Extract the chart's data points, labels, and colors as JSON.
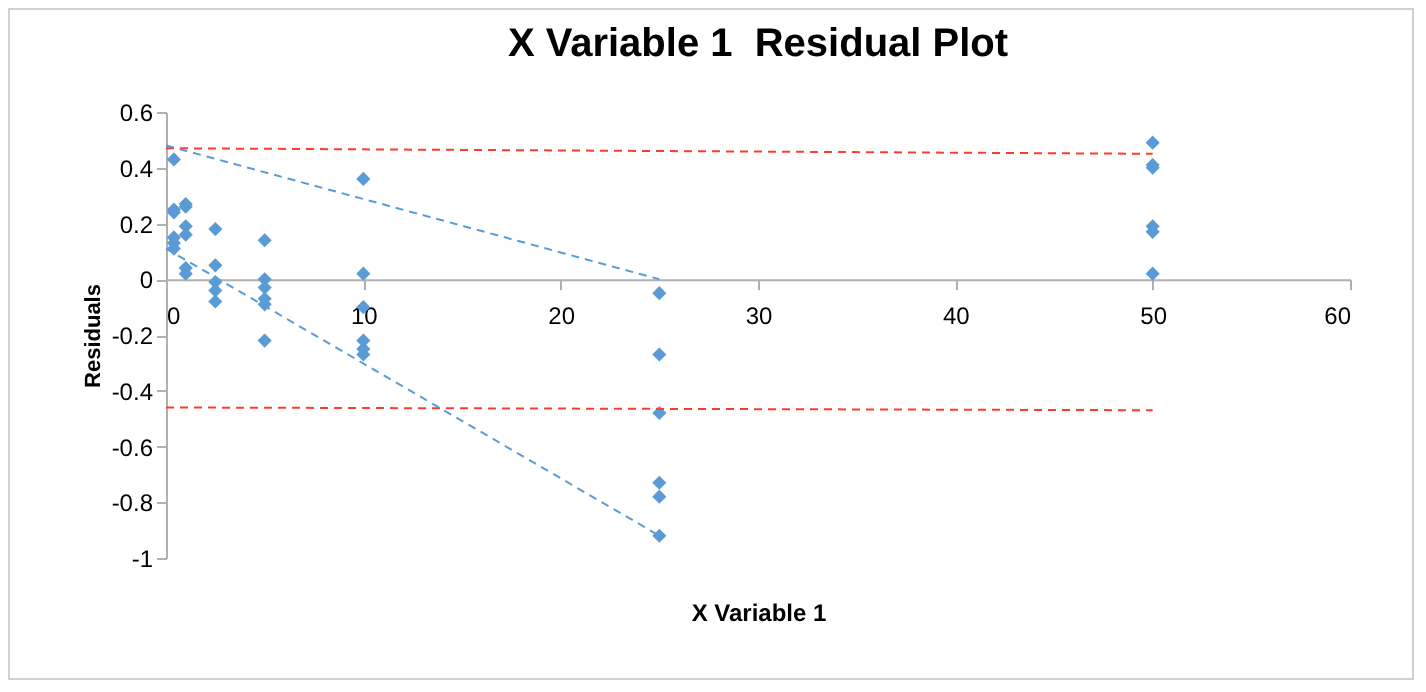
{
  "chart_data": {
    "type": "scatter",
    "title": "X Variable 1  Residual Plot",
    "xlabel": "X Variable 1",
    "ylabel": "Residuals",
    "xlim": [
      0,
      60
    ],
    "xticks": [
      0,
      10,
      20,
      30,
      40,
      50,
      60
    ],
    "ylim": [
      -1,
      0.6
    ],
    "yticks": [
      -1,
      -0.8,
      -0.6,
      -0.4,
      -0.2,
      0,
      0.2,
      0.4,
      0.6
    ],
    "grid": false,
    "series": [
      {
        "color": "#5b9bd5",
        "marker": "diamond",
        "x": [
          0.4,
          0.4,
          0.4,
          0.4,
          0.4,
          0.4,
          1,
          1,
          1,
          1,
          1,
          1,
          2.5,
          2.5,
          2.5,
          2.5,
          2.5,
          5,
          5,
          5,
          5,
          5,
          5,
          10,
          10,
          10,
          10,
          10,
          10,
          25,
          25,
          25,
          25,
          25,
          25,
          50,
          50,
          50,
          50,
          50,
          50
        ],
        "values": [
          0.43,
          0.25,
          0.24,
          0.15,
          0.13,
          0.11,
          0.27,
          0.26,
          0.19,
          0.16,
          0.04,
          0.02,
          0.18,
          0.05,
          -0.01,
          -0.04,
          -0.08,
          0.14,
          0,
          -0.03,
          -0.07,
          -0.09,
          -0.22,
          0.36,
          0.02,
          -0.1,
          -0.22,
          -0.25,
          -0.27,
          -0.05,
          -0.27,
          -0.48,
          -0.73,
          -0.78,
          -0.92,
          0.49,
          0.41,
          0.4,
          0.19,
          0.17,
          0.02
        ]
      },
      {
        "type": "line",
        "marker": "none",
        "line_style": "dashed",
        "color": "#ff3b2f",
        "x": [
          0,
          50
        ],
        "values": [
          0.47,
          0.45
        ]
      },
      {
        "type": "line",
        "marker": "none",
        "line_style": "dashed",
        "color": "#ff3b2f",
        "x": [
          0,
          50
        ],
        "values": [
          -0.46,
          -0.47
        ]
      },
      {
        "type": "line",
        "marker": "none",
        "line_style": "dashed",
        "color": "#5b9bd5",
        "x": [
          0,
          25
        ],
        "values": [
          0.48,
          0
        ]
      },
      {
        "type": "line",
        "marker": "none",
        "line_style": "dashed",
        "color": "#5b9bd5",
        "x": [
          0,
          25
        ],
        "values": [
          0.11,
          -0.92
        ]
      }
    ]
  }
}
